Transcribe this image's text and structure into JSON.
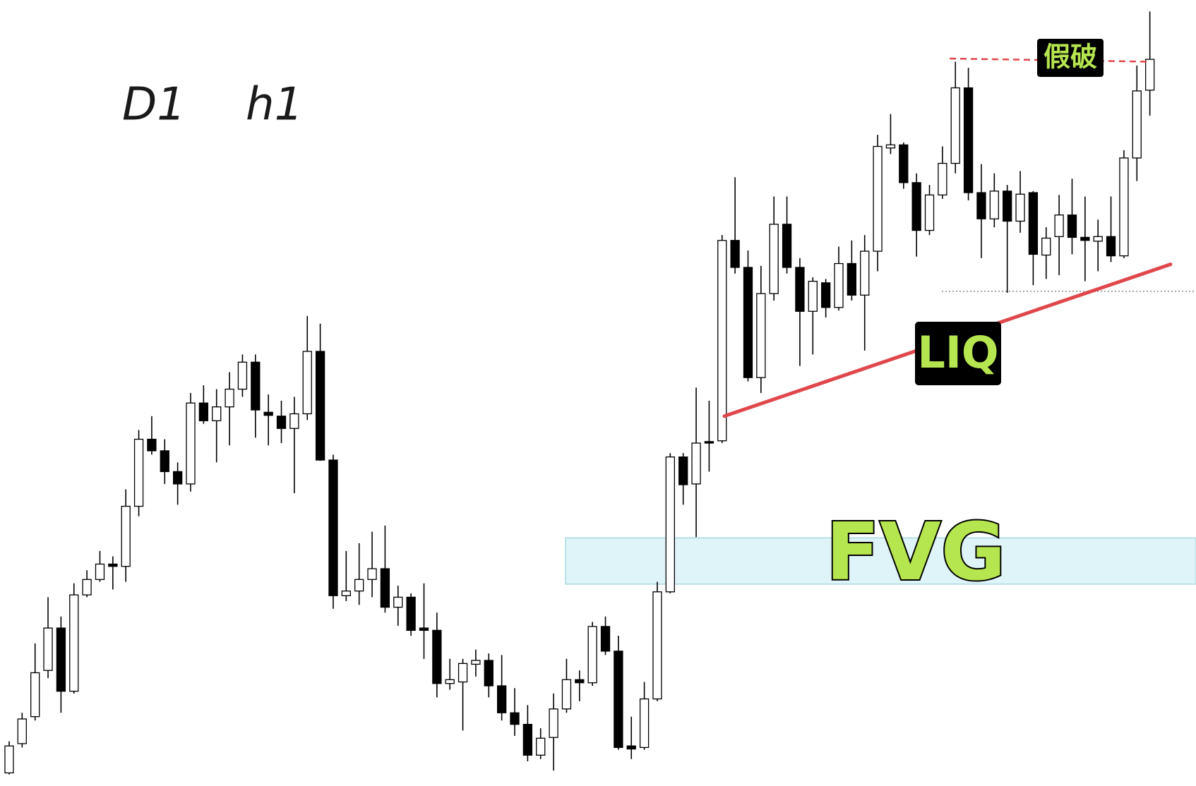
{
  "chart_data": {
    "type": "candlestick",
    "timeframes": [
      "D1",
      "h1"
    ],
    "ylim": [
      0,
      1020
    ],
    "up_color": "#ffffff",
    "down_color": "#000000",
    "open": [
      17,
      55,
      90,
      150,
      205,
      123,
      248,
      268,
      288,
      285,
      363,
      450,
      435,
      408,
      392,
      497,
      474,
      492,
      515,
      550,
      485,
      480,
      464,
      483,
      564,
      423,
      247,
      253,
      268,
      282,
      232,
      245,
      205,
      202,
      133,
      135,
      158,
      163,
      130,
      95,
      80,
      40,
      63,
      100,
      138,
      134,
      207,
      175,
      52,
      50,
      113,
      252,
      427,
      392,
      447,
      448,
      708,
      673,
      530,
      639,
      729,
      673,
      616,
      653,
      621,
      678,
      637,
      694,
      828,
      832,
      783,
      721,
      767,
      808,
      906,
      770,
      736,
      772,
      733,
      770,
      689,
      713,
      741,
      712,
      707,
      713,
      688,
      815,
      903
    ],
    "high": [
      58,
      95,
      185,
      245,
      220,
      263,
      280,
      305,
      298,
      385,
      462,
      480,
      450,
      420,
      510,
      520,
      515,
      537,
      560,
      560,
      508,
      500,
      505,
      610,
      600,
      430,
      305,
      315,
      330,
      338,
      260,
      250,
      263,
      225,
      165,
      165,
      177,
      172,
      170,
      127,
      105,
      75,
      120,
      165,
      150,
      213,
      220,
      195,
      90,
      135,
      265,
      432,
      432,
      517,
      500,
      715,
      790,
      695,
      675,
      765,
      765,
      685,
      660,
      658,
      700,
      708,
      715,
      845,
      872,
      835,
      795,
      780,
      830,
      940,
      932,
      807,
      795,
      780,
      798,
      772,
      725,
      767,
      788,
      765,
      735,
      765,
      825,
      935,
      1005
    ],
    "low": [
      15,
      50,
      85,
      140,
      95,
      120,
      245,
      265,
      255,
      265,
      350,
      430,
      392,
      365,
      382,
      470,
      420,
      442,
      505,
      452,
      442,
      445,
      380,
      475,
      422,
      230,
      240,
      235,
      245,
      225,
      208,
      195,
      165,
      115,
      125,
      72,
      142,
      115,
      85,
      65,
      32,
      35,
      20,
      95,
      110,
      130,
      170,
      47,
      35,
      47,
      110,
      250,
      365,
      323,
      408,
      445,
      665,
      525,
      510,
      630,
      665,
      545,
      560,
      608,
      617,
      630,
      565,
      668,
      820,
      775,
      687,
      715,
      762,
      795,
      760,
      685,
      725,
      640,
      718,
      650,
      658,
      663,
      690,
      655,
      668,
      680,
      685,
      785,
      870
    ],
    "close": [
      52,
      87,
      147,
      205,
      123,
      248,
      268,
      288,
      285,
      363,
      450,
      435,
      408,
      392,
      497,
      474,
      492,
      515,
      550,
      488,
      481,
      464,
      483,
      564,
      423,
      247,
      253,
      268,
      282,
      232,
      245,
      202,
      202,
      133,
      138,
      159,
      163,
      130,
      95,
      80,
      40,
      62,
      100,
      138,
      134,
      207,
      175,
      50,
      48,
      113,
      252,
      427,
      391,
      445,
      445,
      708,
      673,
      530,
      639,
      729,
      673,
      616,
      655,
      621,
      678,
      637,
      694,
      830,
      832,
      783,
      721,
      767,
      808,
      906,
      770,
      736,
      772,
      733,
      768,
      690,
      711,
      741,
      712,
      708,
      713,
      688,
      815,
      902,
      943
    ],
    "fvg_zone": {
      "label": "FVG",
      "range": [
        262,
        322
      ],
      "color": "#dff4f8"
    },
    "liq_line": {
      "label": "LIQ",
      "values": [
        480,
        677
      ],
      "color": "#e0474c"
    },
    "fake_break": {
      "label": "假破",
      "values": [
        944,
        940
      ],
      "color": "#e0474c"
    },
    "low_level": 642,
    "label_color": "#b6e64f"
  }
}
